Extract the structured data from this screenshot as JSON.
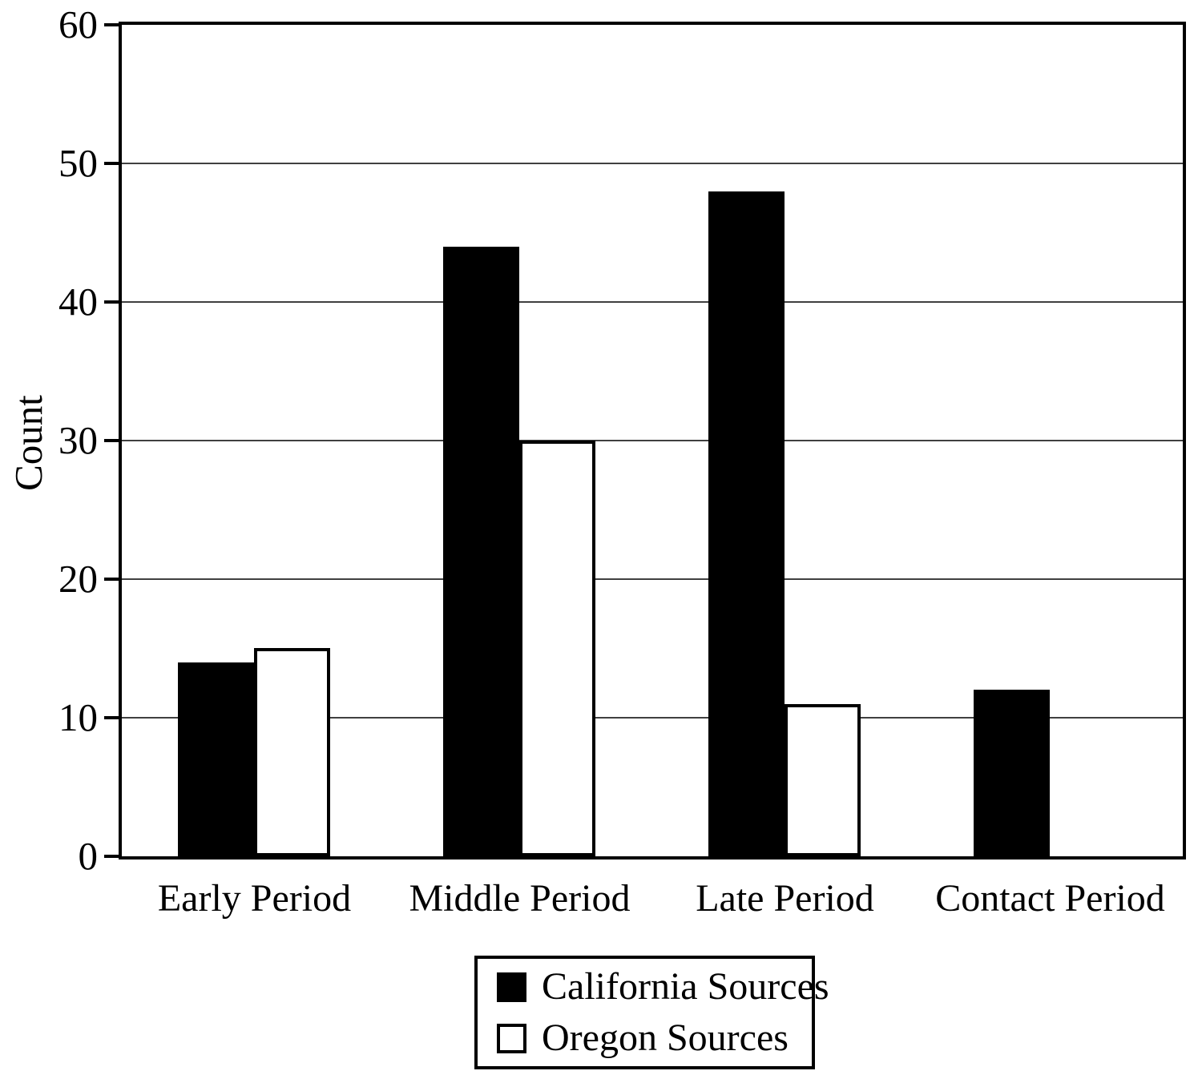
{
  "chart_data": {
    "type": "bar",
    "title": "",
    "xlabel": "",
    "ylabel": "Count",
    "ylim": [
      0,
      60
    ],
    "yticks": [
      0,
      10,
      20,
      30,
      40,
      50,
      60
    ],
    "grid": true,
    "legend_position": "bottom",
    "categories": [
      "Early Period",
      "Middle Period",
      "Late Period",
      "Contact Period"
    ],
    "series": [
      {
        "name": "California Sources",
        "fill": "#000000",
        "values": [
          14,
          44,
          48,
          12
        ]
      },
      {
        "name": "Oregon Sources",
        "fill": "#ffffff",
        "values": [
          15,
          30,
          11,
          0
        ]
      }
    ]
  },
  "colors": {
    "axis": "#000000",
    "gridline": "#404040",
    "background": "#ffffff"
  }
}
